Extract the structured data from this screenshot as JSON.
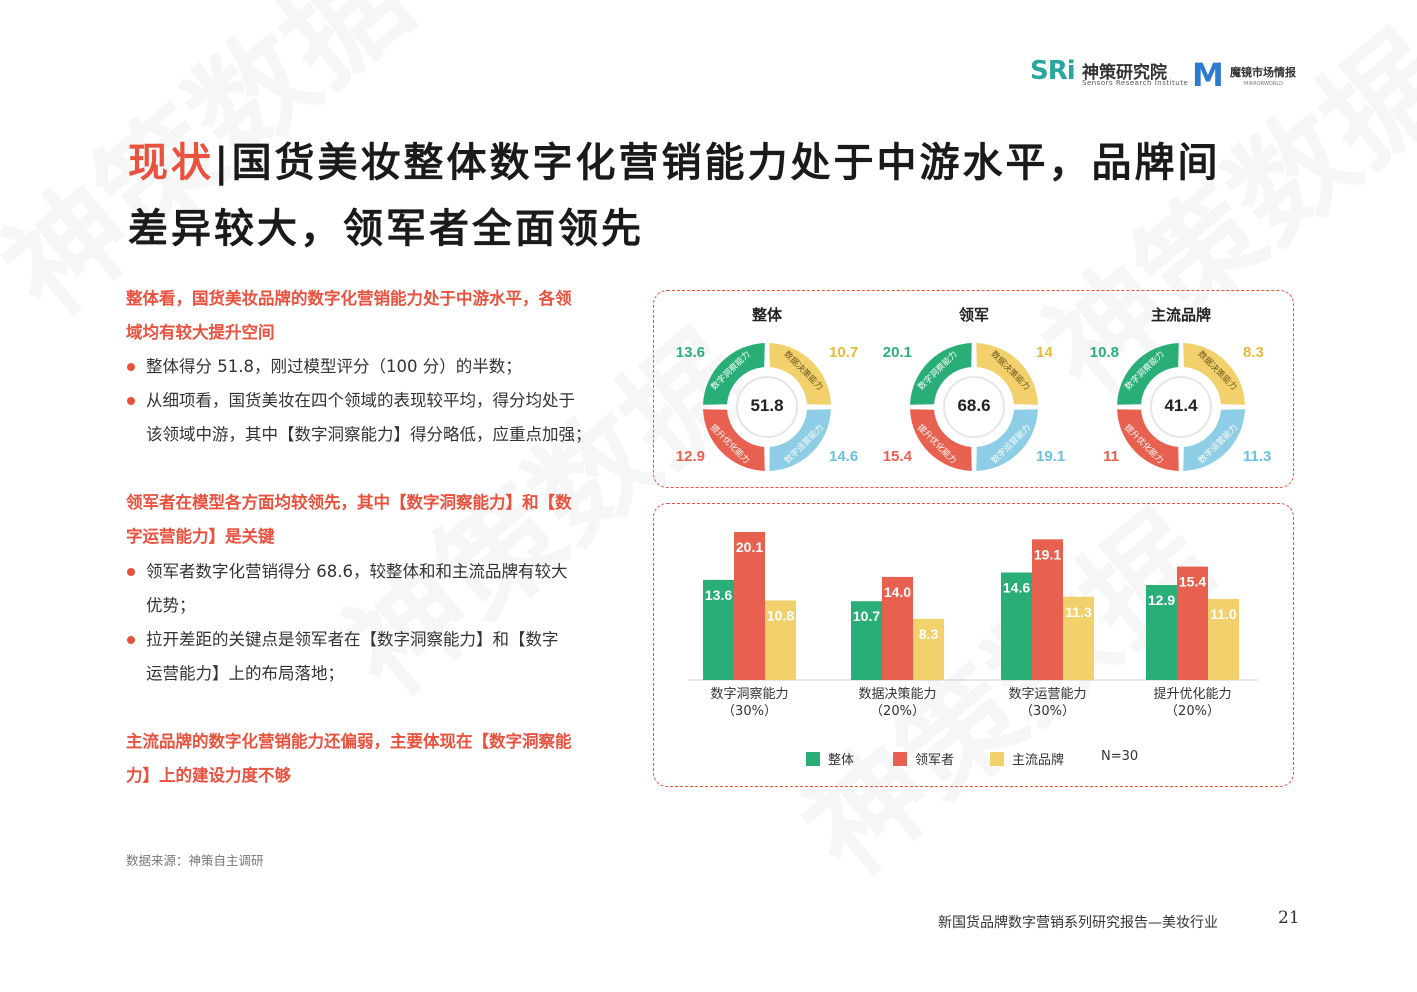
{
  "header": {
    "sri_logo": "SRi",
    "sri_name": "神策研究院",
    "sri_sub": "Sensors Research Institute",
    "m_logo": "M",
    "m_name": "魔镜市场情报",
    "m_sub": "MIRRORWORLD"
  },
  "title": {
    "highlight": "现状",
    "separator": "|",
    "line1": "国货美妆整体数字化营销能力处于中游水平，品牌间",
    "line2": "差异较大，领军者全面领先"
  },
  "sections": [
    {
      "heading_lines": [
        "整体看，国货美妆品牌的数字化营销能力处于中游水平，各领",
        "域均有较大提升空间"
      ],
      "bullets": [
        [
          "整体得分 51.8，刚过模型评分（100 分）的半数；"
        ],
        [
          "从细项看，国货美妆在四个领域的表现较平均，得分均处于",
          "该领域中游，其中【数字洞察能力】得分略低，应重点加强；"
        ]
      ]
    },
    {
      "heading_lines": [
        "领军者在模型各方面均较领先，其中【数字洞察能力】和【数",
        "字运营能力】是关键"
      ],
      "bullets": [
        [
          "领军者数字化营销得分 68.6，较整体和和主流品牌有较大",
          "优势；"
        ],
        [
          "拉开差距的关键点是领军者在【数字洞察能力】和【数字",
          "运营能力】上的布局落地；"
        ]
      ]
    },
    {
      "heading_lines": [
        "主流品牌的数字化营销能力还偏弱，主要体现在【数字洞察能",
        "力】上的建设力度不够"
      ],
      "bullets": []
    }
  ],
  "source": "数据来源：神策自主调研",
  "footer": {
    "text": "新国货品牌数字营销系列研究报告—美妆行业",
    "page": "21"
  },
  "colors": {
    "accent": "#e8523f",
    "green": "#2aae78",
    "red": "#e8604f",
    "yellow": "#f2d06b",
    "blue": "#8ecde6"
  },
  "chart_data": [
    {
      "type": "pie",
      "title": "整体",
      "center": "51.8",
      "slices": [
        {
          "label": "数字洞察能力",
          "value": 13.6,
          "color": "#2aae78"
        },
        {
          "label": "数据决策能力",
          "value": 10.7,
          "color": "#f2d06b"
        },
        {
          "label": "数字运营能力",
          "value": 14.6,
          "color": "#8ecde6"
        },
        {
          "label": "提升优化能力",
          "value": 12.9,
          "color": "#e8604f"
        }
      ]
    },
    {
      "type": "pie",
      "title": "领军",
      "center": "68.6",
      "slices": [
        {
          "label": "数字洞察能力",
          "value": 20.1,
          "color": "#2aae78"
        },
        {
          "label": "数据决策能力",
          "value": 14,
          "color": "#f2d06b"
        },
        {
          "label": "数字运营能力",
          "value": 19.1,
          "color": "#8ecde6"
        },
        {
          "label": "提升优化能力",
          "value": 15.4,
          "color": "#e8604f"
        }
      ]
    },
    {
      "type": "pie",
      "title": "主流品牌",
      "center": "41.4",
      "slices": [
        {
          "label": "数字洞察能力",
          "value": 10.8,
          "color": "#2aae78"
        },
        {
          "label": "数据决策能力",
          "value": 8.3,
          "color": "#f2d06b"
        },
        {
          "label": "数字运营能力",
          "value": 11.3,
          "color": "#8ecde6"
        },
        {
          "label": "提升优化能力",
          "value": 11,
          "color": "#e8604f"
        }
      ]
    },
    {
      "type": "bar",
      "categories": [
        "数字洞察能力",
        "数据决策能力",
        "数字运营能力",
        "提升优化能力"
      ],
      "category_weights": [
        "（30%）",
        "（20%）",
        "（30%）",
        "（20%）"
      ],
      "series": [
        {
          "name": "整体",
          "values": [
            13.6,
            10.7,
            14.6,
            12.9
          ],
          "color": "#2aae78"
        },
        {
          "name": "领军者",
          "values": [
            20.1,
            14.0,
            19.1,
            15.4
          ],
          "color": "#e8604f"
        },
        {
          "name": "主流品牌",
          "values": [
            10.8,
            8.3,
            11.3,
            11.0
          ],
          "color": "#f2d06b"
        }
      ],
      "note": "N=30",
      "ylim": [
        0,
        21
      ],
      "legend": "bottom",
      "grid": false
    }
  ]
}
